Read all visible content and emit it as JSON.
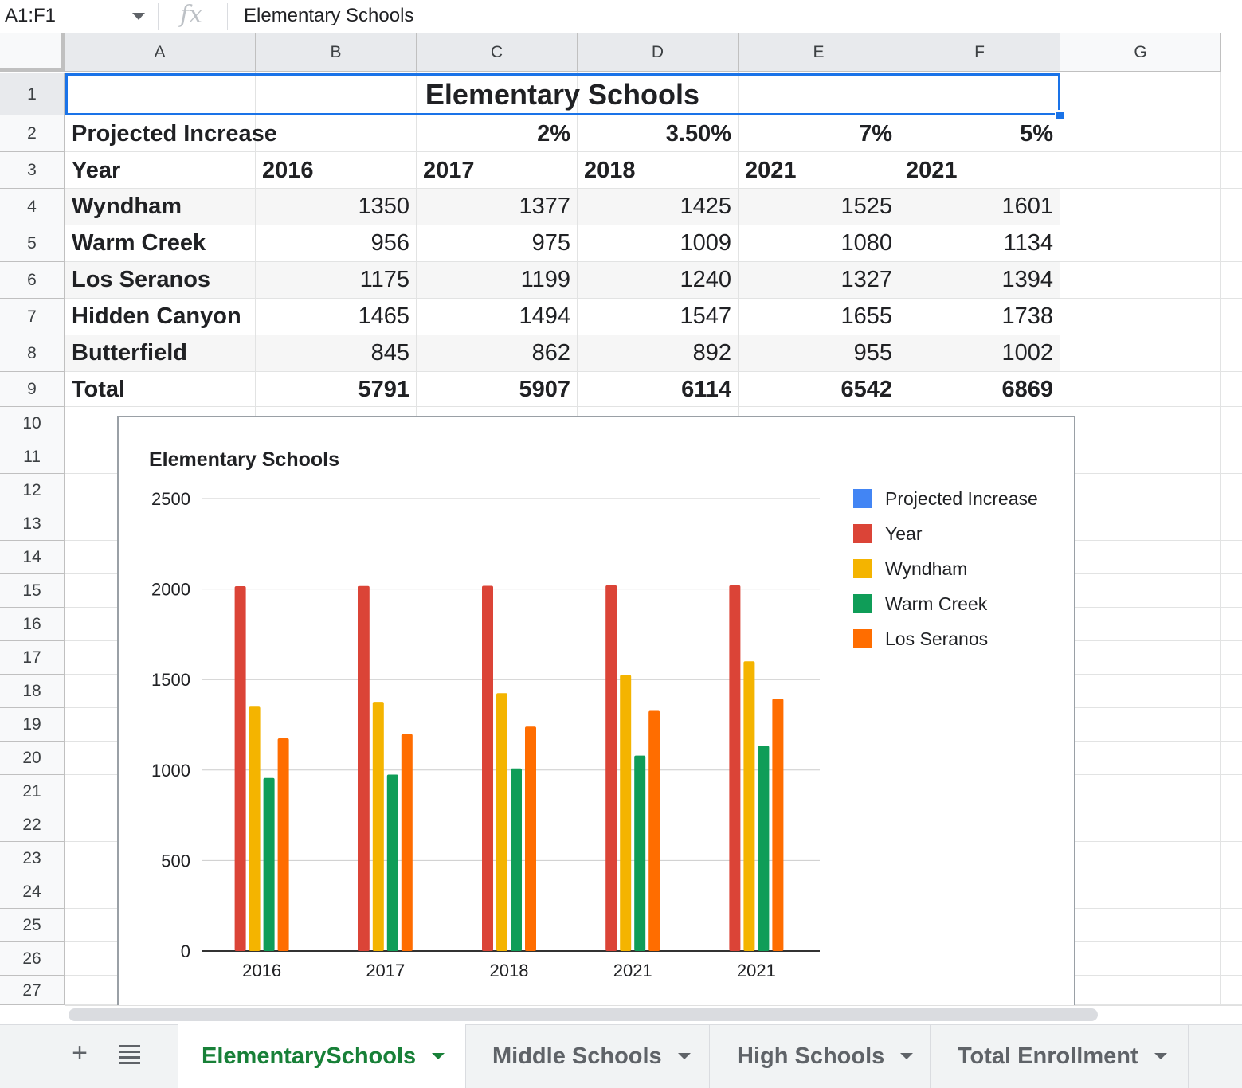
{
  "formula_bar": {
    "name_box": "A1:F1",
    "fx_icon": "function-icon",
    "value": "Elementary Schools"
  },
  "columns": [
    "A",
    "B",
    "C",
    "D",
    "E",
    "F",
    "G"
  ],
  "rows": [
    "1",
    "2",
    "3",
    "4",
    "5",
    "6",
    "7",
    "8",
    "9",
    "10",
    "11",
    "12",
    "13",
    "14",
    "15",
    "16",
    "17",
    "18",
    "19",
    "20",
    "21",
    "22",
    "23",
    "24",
    "25",
    "26",
    "27"
  ],
  "sheet": {
    "title": "Elementary Schools",
    "increase_row": {
      "label": "Projected Increase",
      "values": [
        "2%",
        "3.50%",
        "7%",
        "5%"
      ]
    },
    "year_row": {
      "label": "Year",
      "values": [
        "2016",
        "2017",
        "2018",
        "2021",
        "2021"
      ]
    },
    "data_rows": [
      {
        "name": "Wyndham",
        "values": [
          "1350",
          "1377",
          "1425",
          "1525",
          "1601"
        ]
      },
      {
        "name": "Warm Creek",
        "values": [
          "956",
          "975",
          "1009",
          "1080",
          "1134"
        ]
      },
      {
        "name": "Los Seranos",
        "values": [
          "1175",
          "1199",
          "1240",
          "1327",
          "1394"
        ]
      },
      {
        "name": "Hidden Canyon",
        "values": [
          "1465",
          "1494",
          "1547",
          "1655",
          "1738"
        ]
      },
      {
        "name": "Butterfield",
        "values": [
          "845",
          "862",
          "892",
          "955",
          "1002"
        ]
      }
    ],
    "total_row": {
      "label": "Total",
      "values": [
        "5791",
        "5907",
        "6114",
        "6542",
        "6869"
      ]
    }
  },
  "chart_data": {
    "type": "bar",
    "title": "Elementary Schools",
    "categories": [
      "2016",
      "2017",
      "2018",
      "2021",
      "2021"
    ],
    "ylim": [
      0,
      2500
    ],
    "yticks": [
      "0",
      "500",
      "1000",
      "1500",
      "2000",
      "2500"
    ],
    "grid": true,
    "legend_position": "right",
    "legend": [
      "Projected Increase",
      "Year",
      "Wyndham",
      "Warm Creek",
      "Los Seranos"
    ],
    "legend_colors": [
      "#4285f4",
      "#db4437",
      "#f4b400",
      "#0f9d58",
      "#ff6d00"
    ],
    "series": [
      {
        "name": "Year",
        "color": "#db4437",
        "values": [
          2016,
          2017,
          2018,
          2021,
          2021
        ]
      },
      {
        "name": "Wyndham",
        "color": "#f4b400",
        "values": [
          1350,
          1377,
          1425,
          1525,
          1601
        ]
      },
      {
        "name": "Warm Creek",
        "color": "#0f9d58",
        "values": [
          956,
          975,
          1009,
          1080,
          1134
        ]
      },
      {
        "name": "Los Seranos",
        "color": "#ff6d00",
        "values": [
          1175,
          1199,
          1240,
          1327,
          1394
        ]
      }
    ]
  },
  "tabs": {
    "add_icon": "plus-icon",
    "menu_icon": "sheet-list-icon",
    "items": [
      "ElementarySchools",
      "Middle Schools",
      "High Schools",
      "Total Enrollment"
    ],
    "active": "ElementarySchools"
  }
}
